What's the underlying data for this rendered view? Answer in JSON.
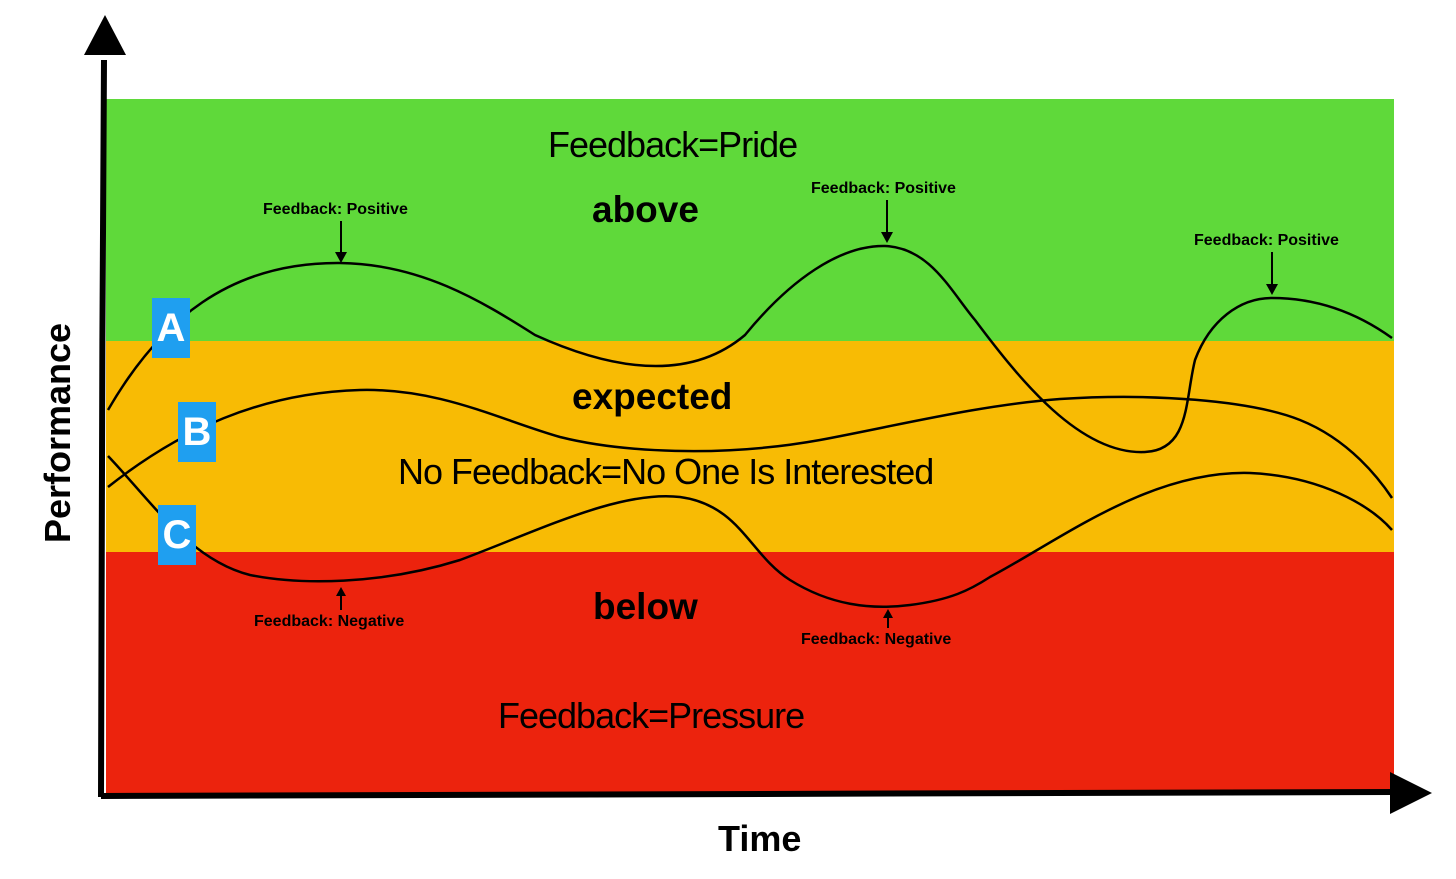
{
  "zones": {
    "above": {
      "label": "above",
      "note": "Feedback=Pride",
      "color": "#5fd93a"
    },
    "expected": {
      "label": "expected",
      "note": "No Feedback=No One Is Interested",
      "color": "#f8bb04"
    },
    "below": {
      "label": "below",
      "note": "Feedback=Pressure",
      "color": "#ec230d"
    }
  },
  "axes": {
    "x_label": "Time",
    "y_label": "Performance"
  },
  "curves": [
    {
      "id": "A",
      "label": "A"
    },
    {
      "id": "B",
      "label": "B"
    },
    {
      "id": "C",
      "label": "C"
    }
  ],
  "annotations": {
    "positive_1": "Feedback: Positive",
    "positive_2": "Feedback: Positive",
    "positive_3": "Feedback: Positive",
    "negative_1": "Feedback: Negative",
    "negative_2": "Feedback: Negative"
  },
  "badge_color": "#1f9ff0"
}
